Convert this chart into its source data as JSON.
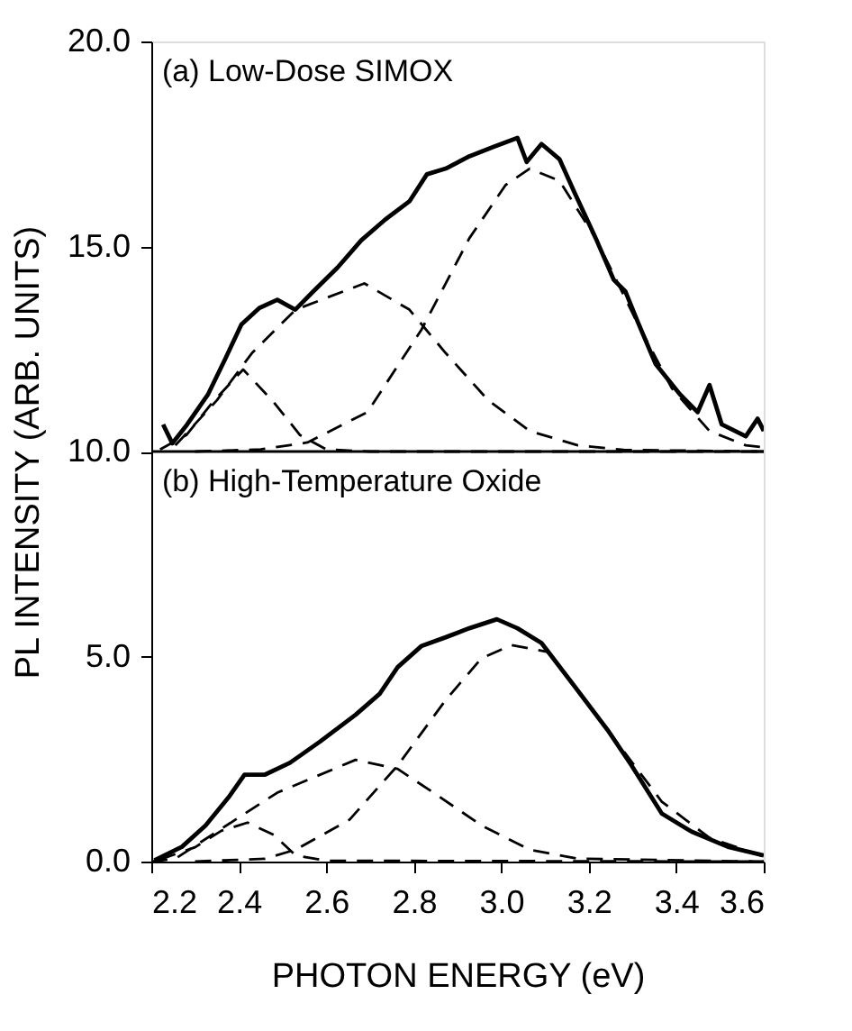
{
  "chart_data": {
    "type": "line",
    "xlabel": "PHOTON ENERGY (eV)",
    "ylabel": "PL INTENSITY (ARB. UNITS)",
    "annotations": [
      "(a) Low-Dose SIMOX",
      "(b) High-Temperature Oxide"
    ],
    "xlim": [
      2.2,
      3.6
    ],
    "ylim": [
      0,
      20
    ],
    "xticks": [
      2.2,
      2.4,
      2.6,
      2.8,
      {
        "value": 3.0,
        "label": "3.0"
      },
      3.2,
      3.4,
      3.6
    ],
    "yticks": [
      {
        "value": 0,
        "label": "0.0"
      },
      {
        "value": 5,
        "label": "5.0"
      },
      {
        "value": 10,
        "label": "10.0"
      },
      {
        "value": 15,
        "label": "15.0"
      },
      {
        "value": 20,
        "label": "20.0"
      }
    ],
    "grid": false,
    "marker": "none",
    "ref_lines": [
      {
        "axis": "y",
        "value": 10,
        "color": "#000000"
      }
    ],
    "series": [
      {
        "color": "#000000",
        "line_style": "solid",
        "x": [
          2.227,
          2.248,
          2.282,
          2.33,
          2.37,
          2.406,
          2.447,
          2.488,
          2.529,
          2.57,
          2.626,
          2.68,
          2.735,
          2.79,
          2.83,
          2.873,
          2.927,
          2.982,
          3.037,
          3.058,
          3.092,
          3.133,
          3.168,
          3.216,
          3.257,
          3.284,
          3.312,
          3.353,
          3.408,
          3.449,
          3.476,
          3.504,
          3.559,
          3.586,
          3.6
        ],
        "values": [
          10.66,
          10.2,
          10.66,
          11.4,
          12.28,
          13.1,
          13.5,
          13.7,
          13.46,
          13.9,
          14.49,
          15.15,
          15.66,
          16.1,
          16.76,
          16.9,
          17.2,
          17.43,
          17.65,
          17.06,
          17.5,
          17.13,
          16.3,
          15.2,
          14.19,
          13.9,
          13.16,
          12.13,
          11.4,
          10.96,
          11.62,
          10.66,
          10.37,
          10.8,
          10.5
        ]
      },
      {
        "color": "#000000",
        "line_style": "dashed",
        "x": [
          2.22,
          2.28,
          2.34,
          2.41,
          2.48,
          2.54,
          2.6,
          2.7,
          3.6
        ],
        "values": [
          10.05,
          10.4,
          11.2,
          12.0,
          11.2,
          10.4,
          10.05,
          10.0,
          10.0
        ]
      },
      {
        "color": "#000000",
        "line_style": "dashed",
        "x": [
          2.255,
          2.35,
          2.43,
          2.53,
          2.687,
          2.79,
          2.873,
          2.97,
          3.065,
          3.175,
          3.28,
          3.6
        ],
        "values": [
          10.15,
          11.25,
          12.4,
          13.46,
          14.1,
          13.46,
          12.4,
          11.25,
          10.5,
          10.15,
          10.04,
          10.0
        ]
      },
      {
        "color": "#000000",
        "line_style": "dashed",
        "x": [
          2.3,
          2.45,
          2.557,
          2.694,
          2.818,
          2.927,
          3.01,
          3.065,
          3.133,
          3.216,
          3.31,
          3.39,
          3.476,
          3.559,
          3.6
        ],
        "values": [
          10.0,
          10.05,
          10.22,
          10.96,
          12.98,
          15.2,
          16.5,
          16.9,
          16.6,
          15.2,
          13.16,
          11.54,
          10.5,
          10.15,
          10.1
        ]
      },
      {
        "color": "#000000",
        "line_style": "solid",
        "x": [
          2.207,
          2.27,
          2.324,
          2.379,
          2.413,
          2.46,
          2.517,
          2.585,
          2.667,
          2.722,
          2.763,
          2.818,
          2.873,
          2.927,
          2.99,
          3.037,
          3.092,
          3.16,
          3.243,
          3.298,
          3.367,
          3.435,
          3.518,
          3.6
        ],
        "values": [
          0.03,
          0.36,
          0.88,
          1.6,
          2.12,
          2.12,
          2.41,
          2.92,
          3.58,
          4.09,
          4.74,
          5.26,
          5.47,
          5.69,
          5.91,
          5.69,
          5.33,
          4.38,
          3.21,
          2.34,
          1.17,
          0.73,
          0.36,
          0.15
        ]
      },
      {
        "color": "#000000",
        "line_style": "dashed",
        "x": [
          2.22,
          2.3,
          2.36,
          2.42,
          2.48,
          2.53,
          2.6,
          3.6
        ],
        "values": [
          0.05,
          0.35,
          0.75,
          0.95,
          0.65,
          0.15,
          0.02,
          0.0
        ]
      },
      {
        "color": "#000000",
        "line_style": "dashed",
        "x": [
          2.2,
          2.255,
          2.35,
          2.488,
          2.667,
          2.763,
          2.845,
          2.955,
          3.065,
          3.175,
          3.6
        ],
        "values": [
          0.0,
          0.07,
          0.73,
          1.68,
          2.48,
          2.26,
          1.68,
          0.88,
          0.29,
          0.07,
          0.0
        ]
      },
      {
        "color": "#000000",
        "line_style": "dashed",
        "x": [
          2.3,
          2.46,
          2.53,
          2.653,
          2.763,
          2.873,
          2.955,
          3.024,
          3.106,
          3.16,
          3.243,
          3.367,
          3.476,
          3.6
        ],
        "values": [
          0.0,
          0.07,
          0.29,
          1.02,
          2.34,
          3.94,
          4.96,
          5.28,
          5.11,
          4.38,
          3.21,
          1.46,
          0.58,
          0.12
        ]
      }
    ]
  }
}
